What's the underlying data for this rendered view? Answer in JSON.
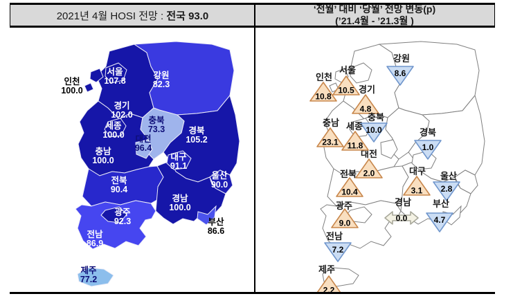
{
  "left_panel": {
    "header": {
      "prefix": "2021년 4월 HOSI 전망 : ",
      "bold": "전국 93.0"
    },
    "regions": [
      {
        "id": "chungnam",
        "name": "충남",
        "value": "100.0",
        "fill": "#1616A8",
        "label_color": "#FFFFFF"
      },
      {
        "id": "gyeonggi",
        "name": "경기",
        "value": "102.0",
        "fill": "#1616A8",
        "label_color": "#FFFFFF"
      },
      {
        "id": "gangwon",
        "name": "강원",
        "value": "82.3",
        "fill": "#3A3AE0",
        "label_color": "#FFFFFF"
      },
      {
        "id": "gyeongbuk",
        "name": "경북",
        "value": "105.2",
        "fill": "#1616A8",
        "label_color": "#FFFFFF"
      },
      {
        "id": "jeonbuk",
        "name": "전북",
        "value": "90.4",
        "fill": "#2828CC",
        "label_color": "#FFFFFF"
      },
      {
        "id": "gyeongnam",
        "name": "경남",
        "value": "100.0",
        "fill": "#1616A8",
        "label_color": "#FFFFFF"
      },
      {
        "id": "jeonnam",
        "name": "전남",
        "value": "86.9",
        "fill": "#4646F0",
        "label_color": "#FFFFFF"
      },
      {
        "id": "chungbuk",
        "name": "충북",
        "value": "73.3",
        "fill": "#9FB4EC",
        "label_color": "#0E0E78"
      },
      {
        "id": "daejeon",
        "name": "대전",
        "value": "96.4",
        "fill": "#9FB4EC",
        "label_color": "#0E0E78"
      },
      {
        "id": "sejong",
        "name": "세종",
        "value": "100.0",
        "fill": "#1616A8",
        "label_color": "#FFFFFF"
      },
      {
        "id": "daegu",
        "name": "대구",
        "value": "91.1",
        "fill": "#2121BE",
        "label_color": "#FFFFFF"
      },
      {
        "id": "ulsan",
        "name": "울산",
        "value": "90.0",
        "fill": "#1D1DB4",
        "label_color": "#FFFFFF"
      },
      {
        "id": "busan",
        "name": "부산",
        "value": "86.6",
        "fill": "#4A52EC",
        "label_color": "#000000"
      },
      {
        "id": "gwangju",
        "name": "광주",
        "value": "92.3",
        "fill": "#1616A8",
        "label_color": "#FFFFFF"
      },
      {
        "id": "seoul",
        "name": "서울",
        "value": "107.8",
        "fill": "#1616A8",
        "label_color": "#FFFFFF"
      },
      {
        "id": "incheon",
        "name": "인천",
        "value": "100.0",
        "fill": "#1616A8",
        "label_color": "#000000"
      },
      {
        "id": "jeju",
        "name": "제주",
        "value": "77.2",
        "fill": "#8CBEEC",
        "label_color": "#0E0E78"
      }
    ]
  },
  "right_panel": {
    "header": {
      "line1": "‘전월’ 대비 ‘당월’ 전망 변동(p)",
      "line2": "(’21.4월 - ’21.3월 )"
    },
    "map_outline": "#7F7F7F",
    "marker_styles": {
      "up": {
        "stroke": "#C8874C",
        "fill": "#F9DFC0"
      },
      "down": {
        "stroke": "#7096CC",
        "fill": "#CBDDF4"
      },
      "flat": {
        "stroke": "#A8A89A",
        "fill": "#F4F2E4"
      }
    },
    "regions": [
      {
        "id": "incheon",
        "name": "인천",
        "value": "10.8",
        "direction": "up"
      },
      {
        "id": "seoul",
        "name": "서울",
        "value": "10.5",
        "direction": "up"
      },
      {
        "id": "gyeonggi",
        "name": "경기",
        "value": "4.8",
        "direction": "up"
      },
      {
        "id": "gangwon",
        "name": "강원",
        "value": "8.6",
        "direction": "down"
      },
      {
        "id": "chungbuk",
        "name": "충북",
        "value": "10.0",
        "direction": "down"
      },
      {
        "id": "chungnam",
        "name": "충남",
        "value": "23.1",
        "direction": "up"
      },
      {
        "id": "sejong",
        "name": "세종",
        "value": "11.8",
        "direction": "up"
      },
      {
        "id": "gyeongbuk",
        "name": "경북",
        "value": "1.0",
        "direction": "down"
      },
      {
        "id": "daejeon",
        "name": "대전",
        "value": "2.0",
        "direction": "up"
      },
      {
        "id": "jeonbuk",
        "name": "전북",
        "value": "10.4",
        "direction": "up"
      },
      {
        "id": "daegu",
        "name": "대구",
        "value": "3.1",
        "direction": "up"
      },
      {
        "id": "ulsan",
        "name": "울산",
        "value": "2.8",
        "direction": "down"
      },
      {
        "id": "gwangju",
        "name": "광주",
        "value": "9.0",
        "direction": "up"
      },
      {
        "id": "gyeongnam",
        "name": "경남",
        "value": "0.0",
        "direction": "flat"
      },
      {
        "id": "busan",
        "name": "부산",
        "value": "4.7",
        "direction": "down"
      },
      {
        "id": "jeonnam",
        "name": "전남",
        "value": "7.2",
        "direction": "down"
      },
      {
        "id": "jeju",
        "name": "제주",
        "value": "2.2",
        "direction": "up"
      }
    ]
  },
  "chart_data": [
    {
      "type": "table",
      "title": "2021년 4월 HOSI 전망 : 전국 93.0",
      "categories": [
        "서울",
        "인천",
        "경기",
        "강원",
        "충북",
        "대전",
        "세종",
        "충남",
        "경북",
        "대구",
        "울산",
        "전북",
        "경남",
        "광주",
        "부산",
        "전남",
        "제주"
      ],
      "values": [
        107.8,
        100.0,
        102.0,
        82.3,
        73.3,
        96.4,
        100.0,
        100.0,
        105.2,
        91.1,
        90.0,
        90.4,
        100.0,
        92.3,
        86.6,
        86.9,
        77.2
      ],
      "national_value": 93.0
    },
    {
      "type": "table",
      "title": "‘전월’ 대비 ‘당월’ 전망 변동(p) (’21.4월 - ’21.3월 )",
      "categories": [
        "서울",
        "인천",
        "경기",
        "강원",
        "충북",
        "대전",
        "세종",
        "충남",
        "경북",
        "대구",
        "울산",
        "전북",
        "경남",
        "광주",
        "부산",
        "전남",
        "제주"
      ],
      "values": [
        10.5,
        10.8,
        4.8,
        -8.6,
        -10.0,
        2.0,
        11.8,
        23.1,
        -1.0,
        3.1,
        -2.8,
        10.4,
        0.0,
        9.0,
        -4.7,
        -7.2,
        2.2
      ],
      "note": "up-triangle = increase, down-triangle = decrease, double-arrow = no change"
    }
  ]
}
